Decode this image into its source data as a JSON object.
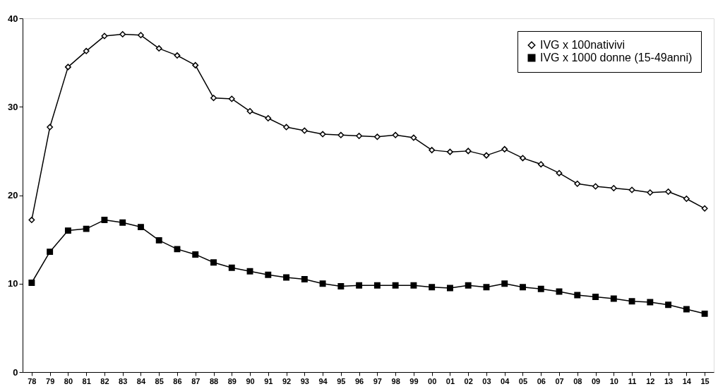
{
  "chart_data": {
    "type": "line",
    "categories": [
      "78",
      "79",
      "80",
      "81",
      "82",
      "83",
      "84",
      "85",
      "86",
      "87",
      "88",
      "89",
      "90",
      "91",
      "92",
      "93",
      "94",
      "95",
      "96",
      "97",
      "98",
      "99",
      "00",
      "01",
      "02",
      "03",
      "04",
      "05",
      "06",
      "07",
      "08",
      "09",
      "10",
      "11",
      "12",
      "13",
      "14",
      "15"
    ],
    "series": [
      {
        "name": "IVG x 100nativivi",
        "color": "#000000",
        "marker": "diamond",
        "values": [
          17.2,
          27.7,
          34.5,
          36.3,
          38.0,
          38.2,
          38.1,
          36.6,
          35.8,
          34.7,
          31.0,
          30.9,
          29.5,
          28.7,
          27.7,
          27.3,
          26.9,
          26.8,
          26.7,
          26.6,
          26.8,
          26.5,
          25.1,
          24.9,
          25.0,
          24.5,
          25.2,
          24.2,
          23.5,
          22.5,
          21.3,
          21.0,
          20.8,
          20.6,
          20.3,
          20.4,
          19.6,
          18.5
        ]
      },
      {
        "name": "IVG x 1000 donne (15-49anni)",
        "color": "#000000",
        "marker": "square",
        "values": [
          10.1,
          13.6,
          16.0,
          16.2,
          17.2,
          16.9,
          16.4,
          14.9,
          13.9,
          13.3,
          12.4,
          11.8,
          11.4,
          11.0,
          10.7,
          10.5,
          10.0,
          9.7,
          9.8,
          9.8,
          9.8,
          9.8,
          9.6,
          9.5,
          9.8,
          9.6,
          10.0,
          9.6,
          9.4,
          9.1,
          8.7,
          8.5,
          8.3,
          8.0,
          7.9,
          7.6,
          7.1,
          6.6
        ]
      }
    ],
    "ylim": [
      0,
      40
    ],
    "yticks": [
      0,
      10,
      20,
      30,
      40
    ],
    "grid": false,
    "legend": "top right",
    "line_style": "solid"
  }
}
